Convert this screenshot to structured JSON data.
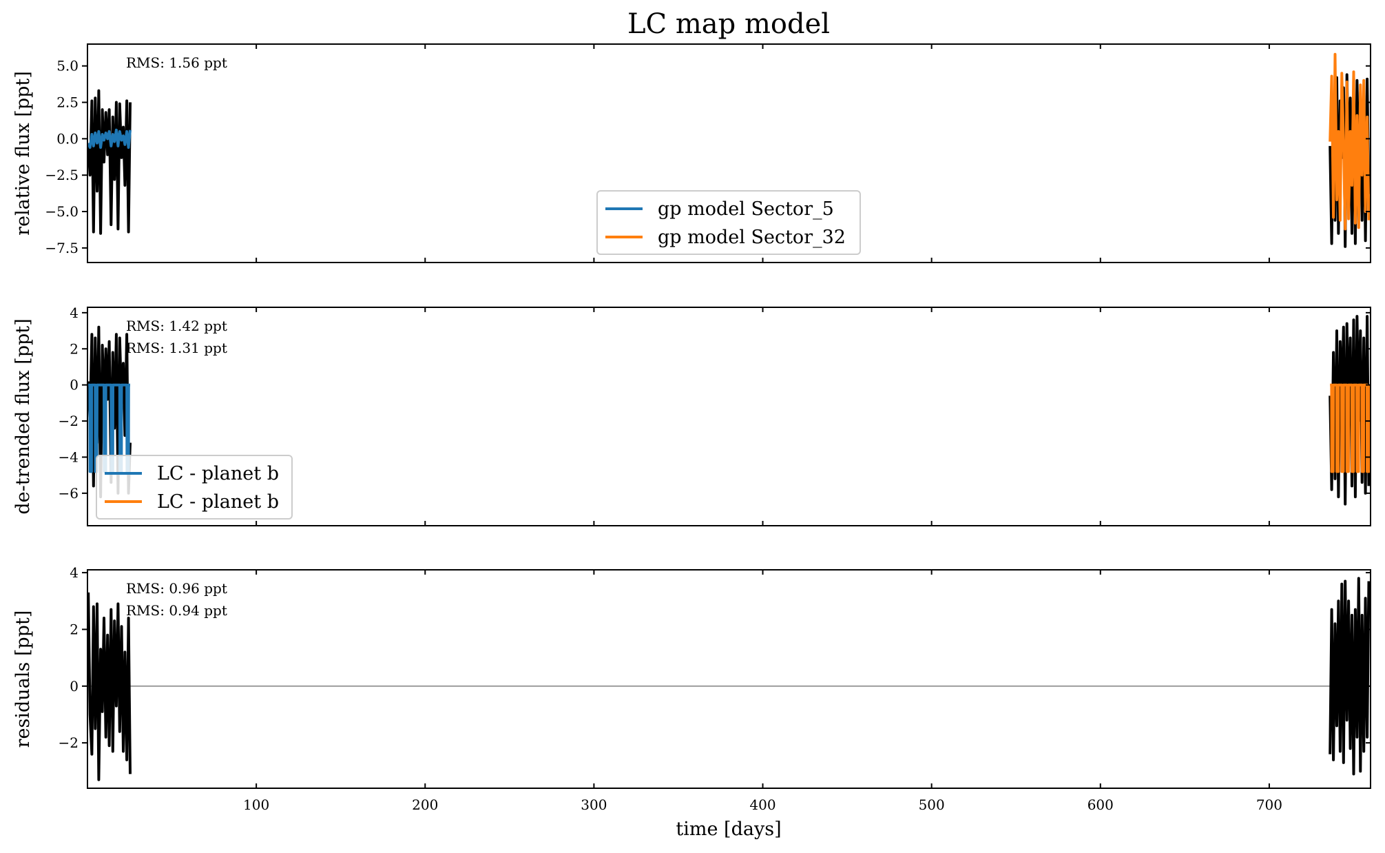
{
  "chart_data": {
    "type": "line",
    "title": "LC map model",
    "xlabel": "time [days]",
    "xlim": [
      0,
      760
    ],
    "xticks": [
      100,
      200,
      300,
      400,
      500,
      600,
      700
    ],
    "colors": {
      "data": "#000000",
      "sector_a": "#1f77b4",
      "sector_b": "#ff7f0e",
      "zero_line": "#a0a0a0"
    },
    "panels": [
      {
        "ylabel": "relative flux [ppt]",
        "ylim": [
          -8.5,
          6.5
        ],
        "yticks": [
          5.0,
          2.5,
          0.0,
          -2.5,
          -5.0,
          -7.5
        ],
        "ytick_labels": [
          "5.0",
          "2.5",
          "0.0",
          "−2.5",
          "−5.0",
          "−7.5"
        ],
        "annotations": [
          "RMS: 1.56 ppt"
        ],
        "legend": {
          "position": "lower-center",
          "entries": [
            "gp model Sector_5",
            "gp model Sector_32"
          ]
        },
        "series": [
          {
            "role": "data",
            "color": "#000000",
            "x": [
              0.5,
              1.5,
              2.6,
              3.6,
              4.6,
              5.7,
              6.7,
              7.8,
              8.8,
              9.8,
              10.9,
              11.9,
              12.9,
              14.0,
              15.0,
              16.0,
              17.1,
              18.1,
              19.1,
              20.2,
              21.2,
              22.2,
              23.3,
              24.3,
              25.3
            ],
            "y": [
              -0.4,
              -2.5,
              2.6,
              -6.4,
              2.8,
              -3.6,
              3.3,
              -6.5,
              2.0,
              -1.6,
              1.8,
              -1.1,
              2.0,
              -5.9,
              1.5,
              -2.8,
              2.5,
              -6.2,
              2.4,
              -1.3,
              0.8,
              -3.2,
              2.6,
              -6.4,
              2.5
            ]
          },
          {
            "role": "data",
            "color": "#000000",
            "x": [
              736.0,
              737.0,
              738.0,
              739.0,
              740.0,
              741.0,
              742.0,
              743.0,
              744.0,
              745.0,
              746.0,
              747.0,
              748.0,
              749.0,
              750.0,
              751.0,
              752.0,
              753.0,
              754.0,
              755.0,
              756.0,
              757.0,
              758.0,
              759.0
            ],
            "y": [
              -0.5,
              -7.2,
              3.0,
              -5.6,
              4.2,
              -6.5,
              2.6,
              -1.3,
              3.5,
              -7.4,
              4.4,
              -2.0,
              2.8,
              -6.5,
              3.5,
              -7.2,
              4.0,
              -2.3,
              3.2,
              -5.6,
              2.7,
              -7.0,
              4.1,
              -3.8
            ]
          },
          {
            "role": "model",
            "name": "gp model Sector_5",
            "color": "#1f77b4",
            "x": [
              0.5,
              1.5,
              2.6,
              3.6,
              4.6,
              5.7,
              6.7,
              7.8,
              8.8,
              9.8,
              10.9,
              11.9,
              12.9,
              14.0,
              15.0,
              16.0,
              17.1,
              18.1,
              19.1,
              20.2,
              21.2,
              22.2,
              23.3,
              24.3,
              25.3
            ],
            "y": [
              -0.3,
              -0.6,
              0.3,
              -0.5,
              0.4,
              -0.3,
              0.5,
              -0.6,
              0.3,
              -0.1,
              0.4,
              0.0,
              0.5,
              -0.5,
              0.3,
              -0.2,
              0.6,
              -0.5,
              0.5,
              -0.1,
              0.2,
              -0.4,
              0.5,
              -0.6,
              0.6
            ]
          },
          {
            "role": "model",
            "name": "gp model Sector_32",
            "color": "#ff7f0e",
            "x": [
              736.0,
              737.0,
              738.0,
              739.0,
              740.0,
              741.0,
              742.0,
              743.0,
              744.0,
              745.0,
              746.0,
              747.0,
              748.0,
              749.0,
              750.0,
              751.0,
              752.0,
              753.0,
              754.0,
              755.0,
              756.0,
              757.0,
              758.0,
              759.0
            ],
            "y": [
              -0.2,
              4.3,
              -5.4,
              5.8,
              -4.2,
              0.5,
              -5.6,
              4.5,
              -0.3,
              -6.2,
              3.9,
              -5.5,
              0.5,
              -3.2,
              4.6,
              -5.8,
              1.6,
              -6.1,
              3.7,
              -2.5,
              4.0,
              -5.0,
              1.5,
              -5.6
            ]
          }
        ]
      },
      {
        "ylabel": "de-trended flux [ppt]",
        "ylim": [
          -7.8,
          4.3
        ],
        "yticks": [
          4,
          2,
          0,
          -2,
          -4,
          -6
        ],
        "ytick_labels": [
          "4",
          "2",
          "0",
          "−2",
          "−4",
          "−6"
        ],
        "annotations": [
          "RMS: 1.42 ppt",
          "RMS: 1.31 ppt"
        ],
        "legend": {
          "position": "lower-left",
          "entries": [
            "LC - planet b",
            "LC - planet b"
          ]
        },
        "series": [
          {
            "role": "data",
            "color": "#000000",
            "x": [
              0.5,
              1.5,
              2.6,
              3.6,
              4.6,
              5.7,
              6.7,
              7.8,
              8.8,
              9.8,
              10.9,
              11.9,
              12.9,
              14.0,
              15.0,
              16.0,
              17.1,
              18.1,
              19.1,
              20.2,
              21.2,
              22.2,
              23.3,
              24.3,
              25.3
            ],
            "y": [
              0.2,
              -2.0,
              2.8,
              -5.6,
              2.6,
              -3.2,
              3.2,
              -6.2,
              2.2,
              -1.2,
              2.0,
              -0.8,
              2.4,
              -5.4,
              1.8,
              -2.4,
              2.8,
              -6.0,
              2.6,
              -1.0,
              1.2,
              -2.8,
              2.8,
              -6.0,
              -3.2
            ]
          },
          {
            "role": "data",
            "color": "#000000",
            "x": [
              736.0,
              737.0,
              738.0,
              739.0,
              740.0,
              741.0,
              742.0,
              743.0,
              744.0,
              745.0,
              746.0,
              747.0,
              748.0,
              749.0,
              750.0,
              751.0,
              752.0,
              753.0,
              754.0,
              755.0,
              756.0,
              757.0,
              758.0,
              759.0
            ],
            "y": [
              -0.6,
              -5.8,
              1.8,
              -5.2,
              3.0,
              -6.2,
              2.4,
              -1.2,
              3.2,
              -6.6,
              3.4,
              -1.8,
              2.6,
              -5.6,
              3.6,
              -6.2,
              3.8,
              -2.0,
              3.0,
              -5.4,
              2.6,
              -6.0,
              3.8,
              -5.6
            ]
          },
          {
            "role": "model",
            "name": "LC - planet b",
            "color": "#1f77b4",
            "x": [
              0.5,
              1.4,
              1.5,
              2.4,
              2.5,
              4.6,
              4.7,
              5.6,
              5.7,
              9.8,
              9.9,
              10.8,
              10.9,
              14.0,
              14.1,
              15.0,
              15.1,
              19.1,
              19.2,
              20.1,
              20.2,
              23.3,
              23.4,
              24.3,
              24.4,
              25.3
            ],
            "y": [
              0,
              0,
              -4.8,
              -4.8,
              0,
              0,
              -4.8,
              -4.8,
              0,
              0,
              -4.8,
              -4.8,
              0,
              0,
              -4.8,
              -4.8,
              0,
              0,
              -4.8,
              -4.8,
              0,
              0,
              -4.8,
              -4.8,
              0,
              0
            ]
          },
          {
            "role": "model",
            "name": "LC - planet b",
            "color": "#ff7f0e",
            "x": [
              736.0,
              736.9,
              737.0,
              737.9,
              738.0,
              739.9,
              740.0,
              740.9,
              741.0,
              742.9,
              743.0,
              743.9,
              744.0,
              745.9,
              746.0,
              746.9,
              747.0,
              748.9,
              749.0,
              749.9,
              750.0,
              751.9,
              752.0,
              752.9,
              753.0,
              754.9,
              755.0,
              755.9,
              756.0,
              757.9,
              758.0,
              758.9,
              759.0
            ],
            "y": [
              0,
              0,
              -4.8,
              -4.8,
              0,
              0,
              -4.8,
              -4.8,
              0,
              0,
              -4.8,
              -4.8,
              0,
              0,
              -4.8,
              -4.8,
              0,
              0,
              -4.8,
              -4.8,
              0,
              0,
              -4.8,
              -4.8,
              0,
              0,
              -4.8,
              -4.8,
              0,
              0,
              -4.8,
              -4.8,
              0
            ]
          }
        ]
      },
      {
        "ylabel": "residuals [ppt]",
        "ylim": [
          -3.6,
          4.1
        ],
        "yticks": [
          4,
          2,
          0,
          -2
        ],
        "ytick_labels": [
          "4",
          "2",
          "0",
          "−2"
        ],
        "annotations": [
          "RMS: 0.96 ppt",
          "RMS: 0.94 ppt"
        ],
        "series": [
          {
            "role": "zero-line",
            "color": "#a0a0a0",
            "x": [
              0,
              760
            ],
            "y": [
              0,
              0
            ]
          },
          {
            "role": "data",
            "color": "#000000",
            "x": [
              0.5,
              1.5,
              2.6,
              3.6,
              4.6,
              5.7,
              6.7,
              7.8,
              8.8,
              9.8,
              10.9,
              11.9,
              12.9,
              14.0,
              15.0,
              16.0,
              17.1,
              18.1,
              19.1,
              20.2,
              21.2,
              22.2,
              23.3,
              24.3,
              25.3
            ],
            "y": [
              3.3,
              -1.0,
              -2.4,
              2.8,
              -1.5,
              2.9,
              -3.3,
              1.3,
              -0.9,
              2.4,
              -1.8,
              1.8,
              -2.1,
              2.7,
              -2.3,
              2.3,
              -0.7,
              2.9,
              -1.6,
              2.1,
              -2.3,
              1.2,
              -2.6,
              2.4,
              -3.1
            ]
          },
          {
            "role": "data",
            "color": "#000000",
            "x": [
              736.0,
              737.0,
              738.0,
              739.0,
              740.0,
              741.0,
              742.0,
              743.0,
              744.0,
              745.0,
              746.0,
              747.0,
              748.0,
              749.0,
              750.0,
              751.0,
              752.0,
              753.0,
              754.0,
              755.0,
              756.0,
              757.0,
              758.0,
              759.0
            ],
            "y": [
              -2.4,
              2.7,
              -2.6,
              2.2,
              -1.4,
              3.0,
              -2.3,
              3.6,
              -2.7,
              3.7,
              -1.2,
              3.0,
              -2.2,
              2.5,
              -3.1,
              2.7,
              -1.8,
              3.8,
              -3.0,
              2.5,
              -2.3,
              3.1,
              -1.8,
              3.7
            ]
          }
        ]
      }
    ]
  }
}
